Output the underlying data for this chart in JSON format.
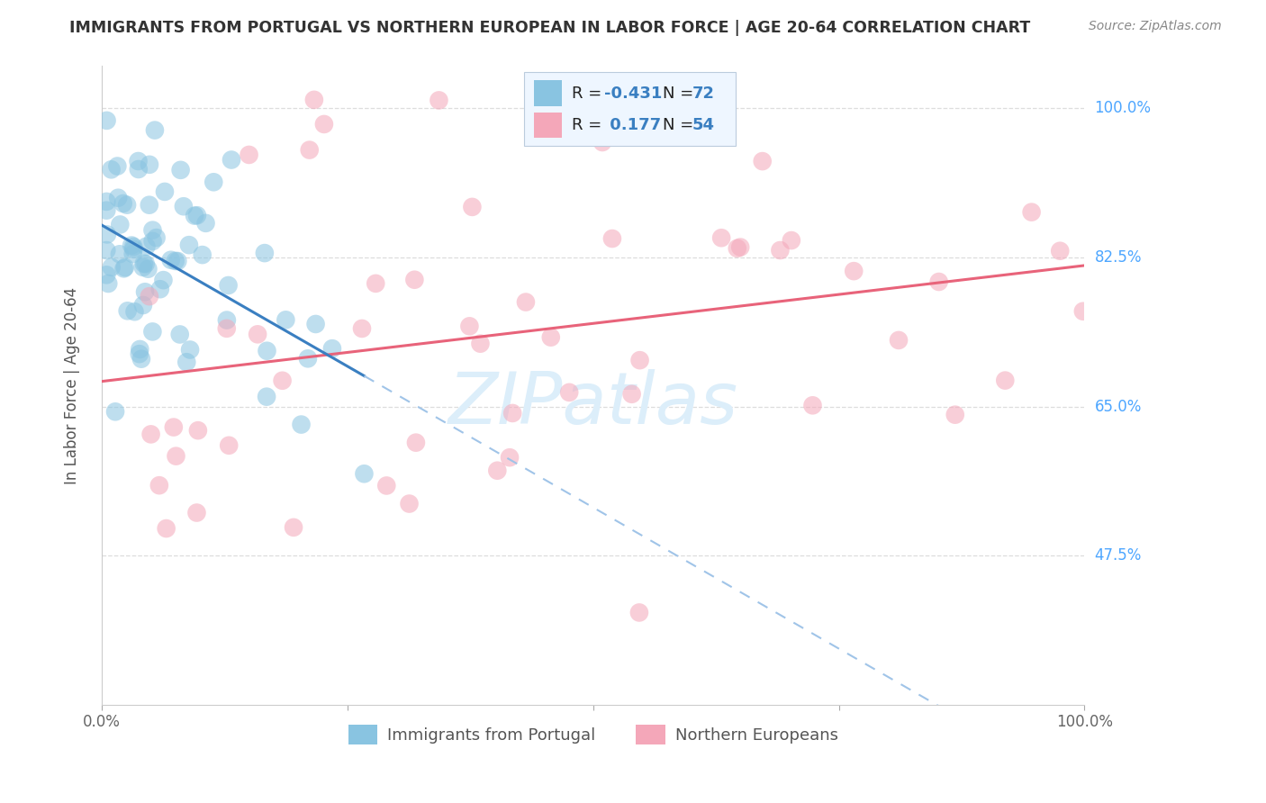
{
  "title": "IMMIGRANTS FROM PORTUGAL VS NORTHERN EUROPEAN IN LABOR FORCE | AGE 20-64 CORRELATION CHART",
  "source": "Source: ZipAtlas.com",
  "ylabel": "In Labor Force | Age 20-64",
  "xlim": [
    0.0,
    1.0
  ],
  "ylim": [
    0.3,
    1.05
  ],
  "ytick_vals": [
    0.475,
    0.65,
    0.825,
    1.0
  ],
  "ytick_labels": [
    "47.5%",
    "65.0%",
    "82.5%",
    "100.0%"
  ],
  "blue_color": "#89c4e1",
  "pink_color": "#f4a7b9",
  "blue_line_color": "#3a7fc1",
  "pink_line_color": "#e8637a",
  "dashed_line_color": "#a0c4e8",
  "right_label_color": "#4da6ff",
  "title_color": "#333333",
  "source_color": "#888888",
  "background_color": "#ffffff",
  "grid_color": "#dddddd",
  "watermark_color": "#dceefa",
  "legend_box_color": "#eef6ff",
  "R_blue": -0.431,
  "N_blue": 72,
  "R_pink": 0.177,
  "N_pink": 54
}
